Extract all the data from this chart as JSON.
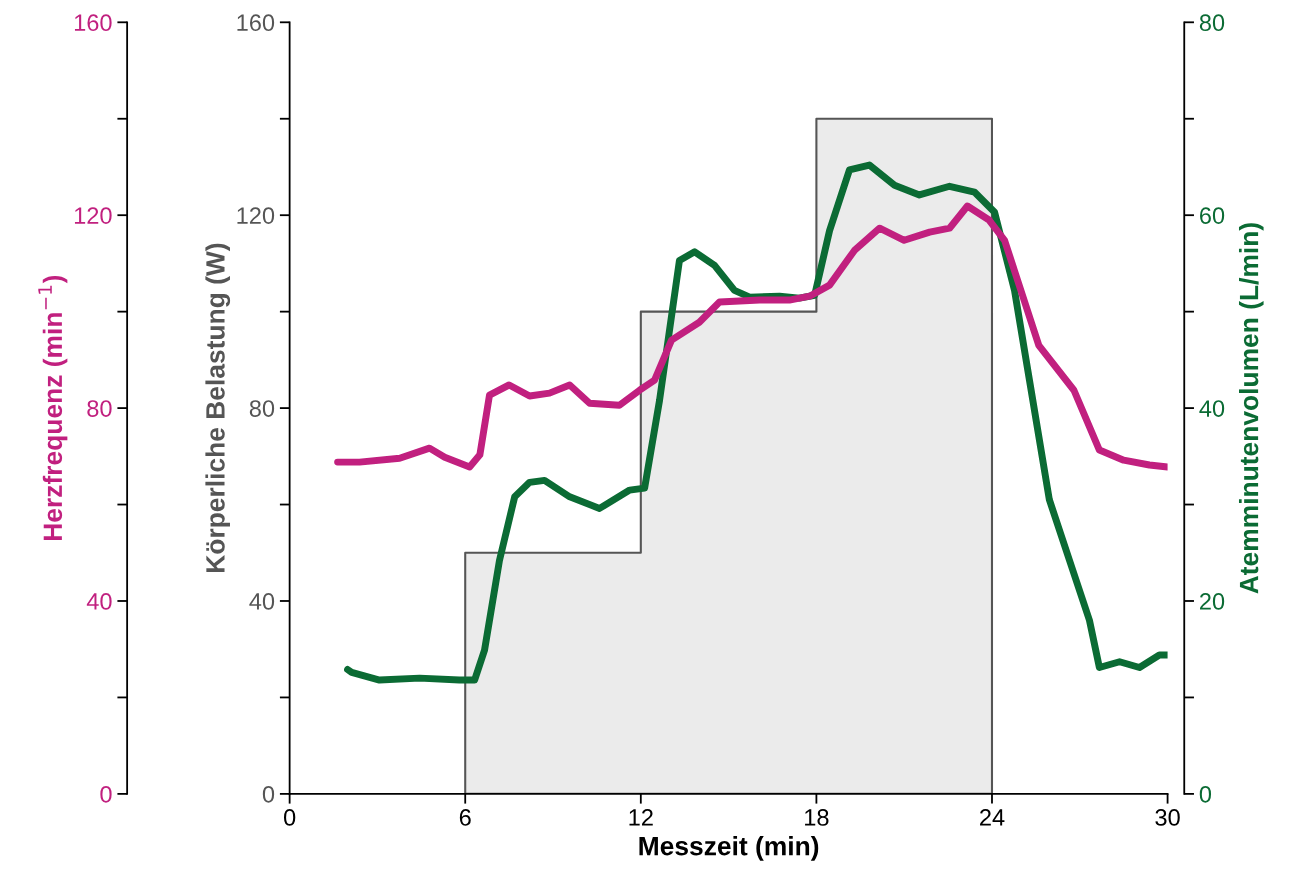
{
  "chart_data": {
    "type": "line",
    "xlabel": "Messzeit (min)",
    "ylabel": "Körperliche Belastung (W)",
    "y2label": "Atemminutenvolumen (L/min)",
    "y3label": "Herzfrequenz (min$^{−1}$)",
    "xlim": [
      0,
      30
    ],
    "xticks": [
      0,
      6,
      12,
      18,
      24,
      30
    ],
    "ylim": [
      0,
      160
    ],
    "yticks": [
      0,
      {
        "value": 20,
        "label": null
      },
      40,
      {
        "value": 60,
        "label": null
      },
      80,
      {
        "value": 100,
        "label": null
      },
      120,
      {
        "value": 140,
        "label": null
      },
      160
    ],
    "y2lim": [
      0,
      80
    ],
    "y2ticks": [
      0,
      {
        "value": 10,
        "label": null
      },
      20,
      {
        "value": 30,
        "label": null
      },
      40,
      {
        "value": 50,
        "label": null
      },
      60,
      {
        "value": 70,
        "label": null
      },
      80
    ],
    "y3lim": [
      0,
      160
    ],
    "y3ticks": [
      0,
      {
        "value": 20,
        "label": null
      },
      40,
      {
        "value": 60,
        "label": null
      },
      80,
      {
        "value": 100,
        "label": null
      },
      120,
      {
        "value": 140,
        "label": null
      },
      160
    ],
    "grid": false,
    "marker": "none",
    "line_style": "solid",
    "series": [
      {
        "type": "area",
        "axis": "y",
        "color": "#ebebeb",
        "x": [
          6,
          6,
          12,
          12,
          18,
          18,
          24,
          24
        ],
        "values": [
          0,
          50,
          50,
          100,
          100,
          140,
          140,
          0
        ]
      },
      {
        "axis": "y3",
        "color": "#c1207f",
        "x": [
          1.64,
          2.39,
          3.76,
          4.78,
          5.3,
          6.15,
          6.5,
          6.83,
          7.5,
          8.2,
          8.88,
          9.57,
          10.25,
          11.27,
          11.96,
          12.47,
          13.05,
          14,
          14.69,
          16.06,
          17.08,
          17.77,
          18.45,
          19.3,
          20.16,
          21,
          21.87,
          22.55,
          23.16,
          23.9,
          24.43,
          25.6,
          26.8,
          27.67,
          28.5,
          29.38,
          30
        ],
        "values": [
          68.8,
          68.8,
          69.6,
          71.7,
          69.8,
          67.8,
          70.3,
          82.7,
          84.8,
          82.5,
          83.1,
          84.8,
          81,
          80.6,
          83.7,
          85.8,
          94.1,
          97.8,
          102,
          102.4,
          102.4,
          103.2,
          105.5,
          112.7,
          117.3,
          114.8,
          116.5,
          117.3,
          121.9,
          119,
          114.8,
          93,
          83.7,
          71.3,
          69.2,
          68.2,
          67.8
        ]
      },
      {
        "axis": "y2",
        "color": "#0b6b34",
        "x": [
          1.98,
          2.12,
          3.07,
          4.44,
          5.8,
          6.32,
          6.66,
          7.17,
          7.69,
          8.2,
          8.71,
          9.57,
          10.59,
          11.62,
          12.13,
          12.64,
          13.32,
          13.84,
          14.52,
          15.2,
          15.72,
          16.74,
          17.42,
          17.94,
          18.45,
          19.13,
          19.81,
          20.67,
          21.52,
          22.55,
          23.4,
          24.09,
          24.77,
          25.28,
          25.96,
          26.65,
          27.33,
          27.67,
          28.36,
          29.04,
          29.72,
          30
        ],
        "values": [
          12.9,
          12.6,
          11.8,
          12,
          11.8,
          11.8,
          14.9,
          24.2,
          30.8,
          32.3,
          32.5,
          30.8,
          29.6,
          31.5,
          31.7,
          40.8,
          55.3,
          56.2,
          54.8,
          52.2,
          51.5,
          51.6,
          51.4,
          51.7,
          58.4,
          64.7,
          65.2,
          63.1,
          62.1,
          63,
          62.4,
          60.3,
          52.2,
          42.9,
          30.5,
          24.2,
          18,
          13.1,
          13.7,
          13.1,
          14.4,
          14.4
        ]
      }
    ]
  }
}
